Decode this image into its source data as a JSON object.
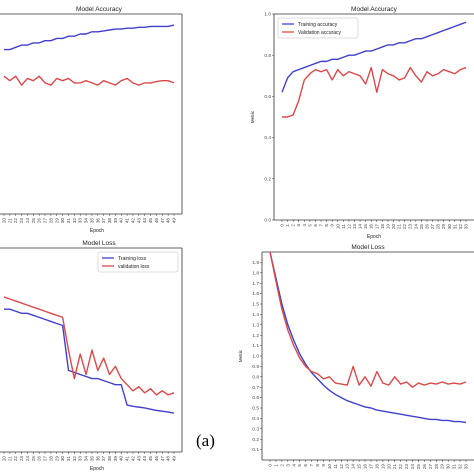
{
  "caption": "(a)",
  "chart_data": [
    {
      "id": "acc_left",
      "type": "line",
      "title": "Model Accuracy",
      "xlabel": "Epoch",
      "ylabel": "",
      "x_ticks": [
        "20",
        "21",
        "22",
        "23",
        "24",
        "25",
        "26",
        "27",
        "28",
        "29",
        "30",
        "31",
        "32",
        "33",
        "34",
        "35",
        "36",
        "37",
        "38",
        "39",
        "40",
        "41",
        "42",
        "43",
        "44",
        "45",
        "46",
        "47",
        "48",
        "49"
      ],
      "ylim": [
        0.55,
        1.0
      ],
      "grid": false,
      "legend": null,
      "series": [
        {
          "color": "#4040cc",
          "values": [
            0.92,
            0.92,
            0.925,
            0.93,
            0.93,
            0.935,
            0.935,
            0.94,
            0.94,
            0.945,
            0.945,
            0.95,
            0.95,
            0.955,
            0.955,
            0.96,
            0.96,
            0.962,
            0.964,
            0.966,
            0.966,
            0.968,
            0.968,
            0.97,
            0.97,
            0.972,
            0.972,
            0.972,
            0.972,
            0.975
          ]
        },
        {
          "color": "#d94a4a",
          "values": [
            0.86,
            0.85,
            0.86,
            0.84,
            0.855,
            0.85,
            0.86,
            0.845,
            0.84,
            0.855,
            0.85,
            0.855,
            0.845,
            0.845,
            0.85,
            0.845,
            0.84,
            0.85,
            0.845,
            0.84,
            0.85,
            0.855,
            0.845,
            0.84,
            0.845,
            0.845,
            0.848,
            0.85,
            0.85,
            0.845
          ]
        }
      ]
    },
    {
      "id": "acc_right",
      "type": "line",
      "title": "Model Accuracy",
      "xlabel": "Epoch",
      "ylabel": "Metric",
      "x_ticks": [
        "0",
        "1",
        "2",
        "3",
        "4",
        "5",
        "6",
        "7",
        "8",
        "9",
        "10",
        "11",
        "12",
        "13",
        "14",
        "15",
        "16",
        "17",
        "18",
        "19",
        "20",
        "21",
        "22",
        "23",
        "24",
        "25",
        "26",
        "27",
        "28",
        "29",
        "30",
        "31",
        "32",
        "33"
      ],
      "y_ticks": [
        0.0,
        0.2,
        0.4,
        0.6,
        0.8,
        1.0
      ],
      "y_tick_labels": [
        "0.0",
        "0.2",
        "0.4",
        "0.6",
        "0.8",
        "1.0"
      ],
      "ylim": [
        0.0,
        1.0
      ],
      "grid": false,
      "legend": {
        "placement": "top-left",
        "entries": [
          "Training accuracy",
          "Validation accuracy"
        ]
      },
      "series": [
        {
          "name": "Training accuracy",
          "color": "#4040cc",
          "values": [
            0.62,
            0.69,
            0.72,
            0.73,
            0.74,
            0.75,
            0.76,
            0.77,
            0.77,
            0.78,
            0.78,
            0.79,
            0.8,
            0.8,
            0.81,
            0.82,
            0.82,
            0.83,
            0.84,
            0.85,
            0.85,
            0.86,
            0.86,
            0.87,
            0.88,
            0.88,
            0.89,
            0.9,
            0.91,
            0.92,
            0.93,
            0.94,
            0.95,
            0.96
          ]
        },
        {
          "name": "Validation accuracy",
          "color": "#d94a4a",
          "values": [
            0.5,
            0.5,
            0.51,
            0.58,
            0.68,
            0.71,
            0.73,
            0.72,
            0.73,
            0.68,
            0.73,
            0.7,
            0.72,
            0.71,
            0.7,
            0.66,
            0.74,
            0.62,
            0.73,
            0.71,
            0.7,
            0.68,
            0.69,
            0.74,
            0.7,
            0.67,
            0.72,
            0.7,
            0.71,
            0.73,
            0.72,
            0.71,
            0.73,
            0.74
          ]
        }
      ]
    },
    {
      "id": "loss_left",
      "type": "line",
      "title": "Model Loss",
      "xlabel": "Epoch",
      "ylabel": "",
      "x_ticks": [
        "20",
        "21",
        "22",
        "23",
        "24",
        "25",
        "26",
        "27",
        "28",
        "29",
        "30",
        "31",
        "32",
        "33",
        "34",
        "35",
        "36",
        "37",
        "38",
        "39",
        "40",
        "41",
        "42",
        "43",
        "44",
        "45",
        "46",
        "47",
        "48",
        "49"
      ],
      "ylim": [
        0.0,
        0.5
      ],
      "grid": false,
      "legend": {
        "placement": "top-right",
        "entries": [
          "Training loss",
          "validation loss"
        ]
      },
      "series": [
        {
          "name": "Training loss",
          "color": "#4040cc",
          "values": [
            0.35,
            0.35,
            0.345,
            0.34,
            0.34,
            0.335,
            0.33,
            0.325,
            0.32,
            0.315,
            0.31,
            0.2,
            0.195,
            0.19,
            0.185,
            0.18,
            0.18,
            0.175,
            0.17,
            0.165,
            0.165,
            0.115,
            0.112,
            0.11,
            0.108,
            0.105,
            0.102,
            0.1,
            0.098,
            0.095
          ]
        },
        {
          "name": "validation loss",
          "color": "#d94a4a",
          "values": [
            0.38,
            0.375,
            0.37,
            0.365,
            0.36,
            0.355,
            0.35,
            0.345,
            0.34,
            0.335,
            0.33,
            0.25,
            0.18,
            0.24,
            0.19,
            0.25,
            0.2,
            0.23,
            0.19,
            0.21,
            0.18,
            0.165,
            0.15,
            0.16,
            0.145,
            0.155,
            0.14,
            0.15,
            0.14,
            0.145
          ]
        }
      ]
    },
    {
      "id": "loss_right",
      "type": "line",
      "title": "Model Loss",
      "xlabel": "Epoch",
      "ylabel": "Metric",
      "x_ticks": [
        "0",
        "1",
        "2",
        "3",
        "4",
        "5",
        "6",
        "7",
        "8",
        "9",
        "10",
        "11",
        "12",
        "13",
        "14",
        "15",
        "16",
        "17",
        "18",
        "19",
        "20",
        "21",
        "22",
        "23",
        "24",
        "25",
        "26",
        "27",
        "28",
        "29",
        "30",
        "31",
        "32",
        "33"
      ],
      "y_ticks": [
        0.1,
        0.2,
        0.3,
        0.4,
        0.5,
        0.6,
        0.7,
        0.8,
        0.9,
        1.0,
        1.1,
        1.2,
        1.3,
        1.4,
        1.5,
        1.6,
        1.7,
        1.8,
        1.9
      ],
      "y_tick_labels": [
        "0.1",
        "0.2",
        "0.3",
        "0.4",
        "0.5",
        "0.6",
        "0.7",
        "0.8",
        "0.9",
        "1.0",
        "1.1",
        "1.2",
        "1.3",
        "1.4",
        "1.5",
        "1.6",
        "1.7",
        "1.8",
        "1.9"
      ],
      "ylim": [
        0.0,
        2.0
      ],
      "grid": false,
      "legend": null,
      "series": [
        {
          "color": "#4040cc",
          "values": [
            2.0,
            1.75,
            1.5,
            1.3,
            1.15,
            1.02,
            0.92,
            0.84,
            0.78,
            0.72,
            0.67,
            0.63,
            0.6,
            0.57,
            0.55,
            0.53,
            0.51,
            0.5,
            0.48,
            0.47,
            0.46,
            0.45,
            0.44,
            0.43,
            0.42,
            0.41,
            0.4,
            0.39,
            0.39,
            0.38,
            0.38,
            0.37,
            0.37,
            0.36
          ]
        },
        {
          "color": "#d94a4a",
          "values": [
            2.0,
            1.72,
            1.45,
            1.25,
            1.1,
            0.98,
            0.9,
            0.85,
            0.83,
            0.78,
            0.8,
            0.74,
            0.73,
            0.72,
            0.9,
            0.72,
            0.8,
            0.71,
            0.85,
            0.74,
            0.72,
            0.8,
            0.73,
            0.75,
            0.7,
            0.74,
            0.72,
            0.74,
            0.73,
            0.75,
            0.73,
            0.74,
            0.73,
            0.75
          ]
        }
      ]
    }
  ]
}
